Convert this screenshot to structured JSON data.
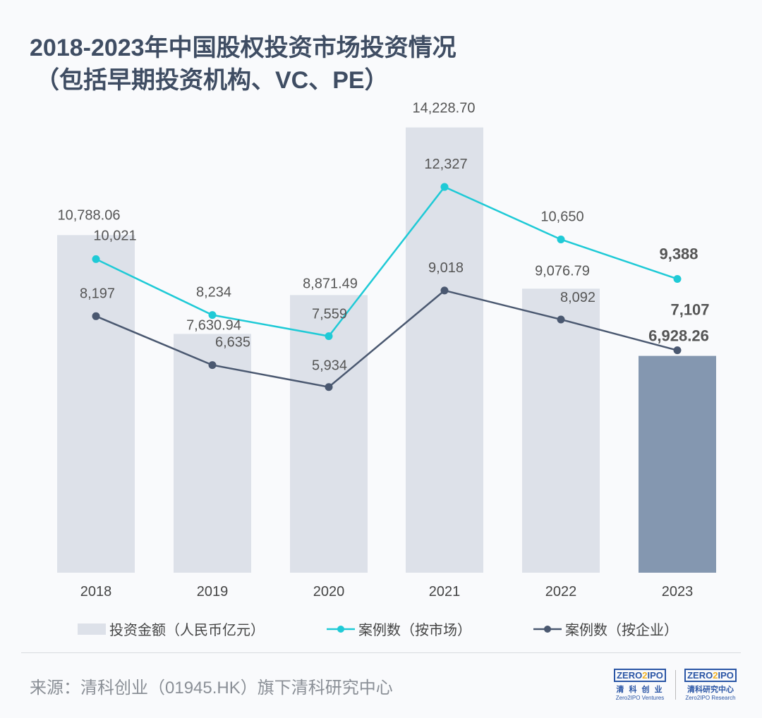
{
  "title_line1": "2018-2023年中国股权投资市场投资情况",
  "title_line2": "（包括早期投资机构、VC、PE）",
  "source": "来源：清科创业（01945.HK）旗下清科研究中心",
  "logos": [
    {
      "mark": "ZERO2IPO",
      "cn": "清 科 创 业",
      "en": "Zero2IPO Ventures"
    },
    {
      "mark": "ZERO2IPO",
      "cn": "清科研究中心",
      "en": "Zero2IPO Research"
    }
  ],
  "chart_data": {
    "type": "bar+line",
    "categories": [
      "2018",
      "2019",
      "2020",
      "2021",
      "2022",
      "2023"
    ],
    "series": [
      {
        "name": "投资金额（人民币亿元）",
        "type": "bar",
        "values": [
          10788.06,
          7630.94,
          8871.49,
          14228.7,
          9076.79,
          6928.26
        ],
        "labels": [
          "10,788.06",
          "7,630.94",
          "8,871.49",
          "14,228.70",
          "9,076.79",
          "6,928.26"
        ],
        "color": "#dde1e9",
        "highlight_color": "#8497b0"
      },
      {
        "name": "案例数（按市场）",
        "type": "line",
        "values": [
          10021,
          8234,
          7559,
          12327,
          10650,
          9388
        ],
        "labels": [
          "10,021",
          "8,234",
          "7,559",
          "12,327",
          "10,650",
          "9,388"
        ],
        "color": "#1fcad6"
      },
      {
        "name": "案例数（按企业）",
        "type": "line",
        "values": [
          8197,
          6635,
          5934,
          9018,
          8092,
          7107
        ],
        "labels": [
          "8,197",
          "6,635",
          "5,934",
          "9,018",
          "8,092",
          "7,107"
        ],
        "color": "#4a5870"
      }
    ],
    "ylim": [
      0,
      18300
    ],
    "grid": false,
    "legend": "bottom"
  }
}
